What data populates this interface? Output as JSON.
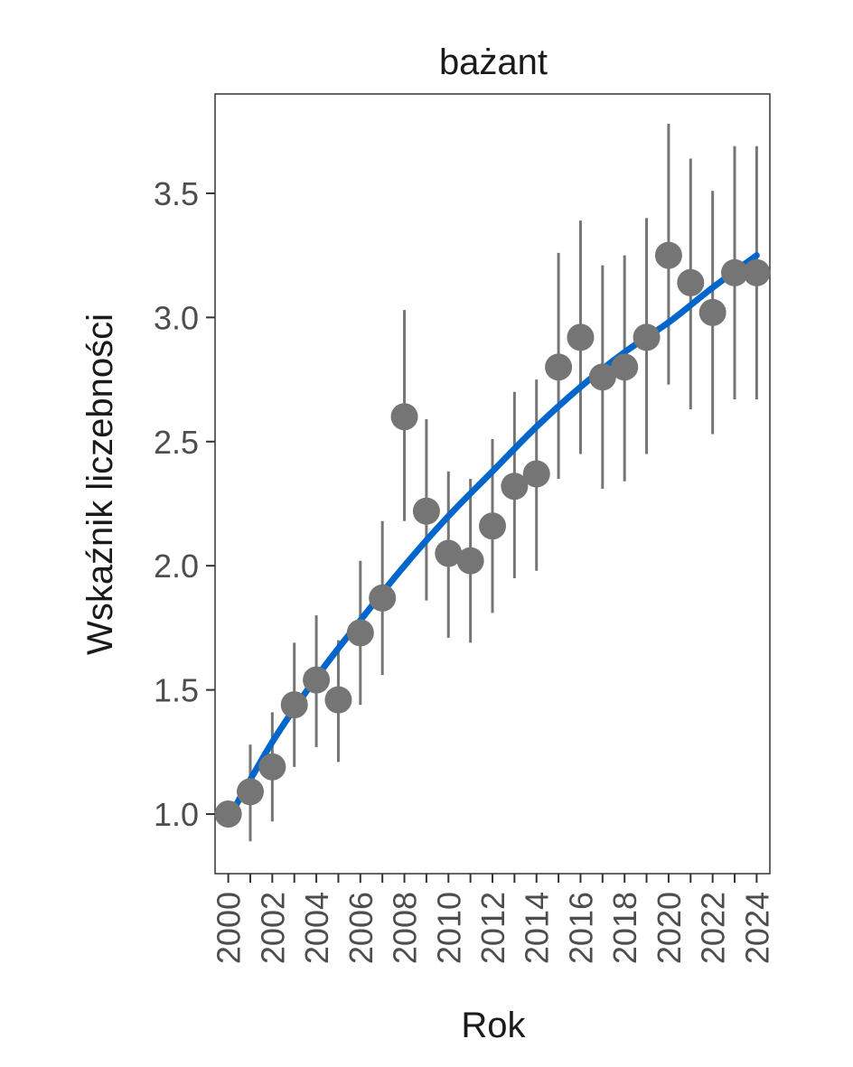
{
  "chart_data": {
    "type": "scatter",
    "title": "bażant",
    "xlabel": "Rok",
    "ylabel": "Wskaźnik liczebności",
    "xlim": [
      1999.4,
      2024.6
    ],
    "ylim": [
      0.76,
      3.9
    ],
    "x_ticks": [
      "2000",
      "2002",
      "2004",
      "2006",
      "2008",
      "2010",
      "2012",
      "2014",
      "2016",
      "2018",
      "2020",
      "2022",
      "2024"
    ],
    "y_ticks": [
      "1.0",
      "1.5",
      "2.0",
      "2.5",
      "3.0",
      "3.5"
    ],
    "grid": false,
    "legend": "none",
    "point_color": "#757575",
    "errorbar_color": "#757575",
    "trend_color": "#0066cc",
    "series": [
      {
        "x": [
          2000,
          2001,
          2002,
          2003,
          2004,
          2005,
          2006,
          2007,
          2008,
          2009,
          2010,
          2011,
          2012,
          2013,
          2014,
          2015,
          2016,
          2017,
          2018,
          2019,
          2020,
          2021,
          2022,
          2023,
          2024
        ],
        "values": [
          1.0,
          1.09,
          1.19,
          1.44,
          1.54,
          1.46,
          1.73,
          1.87,
          2.6,
          2.22,
          2.05,
          2.02,
          2.16,
          2.32,
          2.37,
          2.8,
          2.92,
          2.76,
          2.8,
          2.92,
          3.25,
          3.14,
          3.02,
          3.18,
          3.18
        ],
        "lower": [
          1.0,
          0.89,
          0.97,
          1.19,
          1.27,
          1.21,
          1.44,
          1.56,
          2.18,
          1.86,
          1.71,
          1.69,
          1.81,
          1.95,
          1.98,
          2.35,
          2.45,
          2.31,
          2.34,
          2.45,
          2.73,
          2.63,
          2.53,
          2.67,
          2.67
        ],
        "upper": [
          1.0,
          1.28,
          1.41,
          1.69,
          1.8,
          1.7,
          2.02,
          2.18,
          3.03,
          2.59,
          2.38,
          2.35,
          2.51,
          2.7,
          2.75,
          3.26,
          3.39,
          3.21,
          3.25,
          3.4,
          3.78,
          3.64,
          3.51,
          3.69,
          3.69
        ]
      }
    ],
    "trend": {
      "x": [
        2000,
        2002,
        2004,
        2006,
        2008,
        2010,
        2012,
        2014,
        2016,
        2018,
        2020,
        2022,
        2024
      ],
      "values": [
        0.98,
        1.29,
        1.55,
        1.78,
        2.0,
        2.2,
        2.38,
        2.56,
        2.72,
        2.86,
        2.98,
        3.12,
        3.25
      ]
    }
  }
}
